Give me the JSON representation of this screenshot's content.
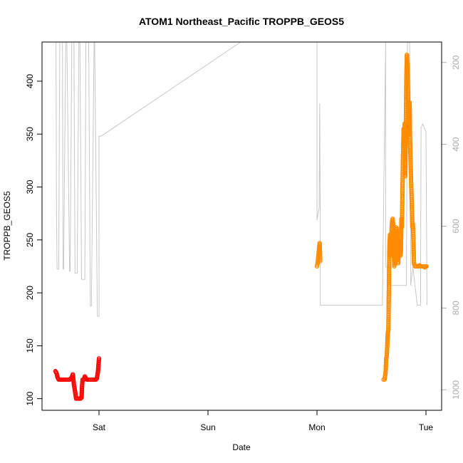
{
  "chart_data": {
    "type": "scatter",
    "title": "ATOM1 Northeast_Pacific TROPPB_GEOS5",
    "xlabel": "Date",
    "ylabel": "TROPPB_GEOS5",
    "x_ticks": [
      "Sat",
      "Sun",
      "Mon",
      "Tue"
    ],
    "xlim": [
      -0.455,
      3.13
    ],
    "ylim": [
      89,
      437
    ],
    "y_ticks": [
      100,
      150,
      200,
      250,
      300,
      350,
      400
    ],
    "right_axis": {
      "label_color": "#aaaaaa",
      "ticks": [
        200,
        400,
        600,
        800,
        1000
      ],
      "lim": [
        1050,
        150
      ],
      "reversed": true
    },
    "grid": false,
    "colors": {
      "flight1": "#ff0000",
      "flight2": "#ff8c00",
      "pressure": "#c8c8c8"
    },
    "series": [
      {
        "color": "#ff0000",
        "x": [
          -0.4,
          -0.39,
          -0.38,
          -0.37,
          -0.35,
          -0.33,
          -0.3,
          -0.27,
          -0.25,
          -0.24,
          -0.235,
          -0.23,
          -0.22,
          -0.21,
          -0.2,
          -0.19,
          -0.18,
          -0.17,
          -0.16,
          -0.155,
          -0.15,
          -0.14,
          -0.13,
          -0.12,
          -0.11,
          -0.1,
          -0.09,
          -0.08,
          -0.07,
          -0.06,
          -0.05,
          -0.04,
          -0.03,
          -0.02,
          -0.01,
          0.0
        ],
        "y": [
          126,
          124,
          120,
          118,
          118,
          118,
          118,
          118,
          120,
          123,
          118,
          113,
          107,
          100,
          100,
          100,
          100,
          100,
          101,
          113,
          118,
          118,
          121,
          119,
          118,
          118,
          118,
          118,
          118,
          118,
          118,
          118,
          118,
          119,
          125,
          138
        ]
      },
      {
        "color": "#ff8c00",
        "x": [
          0.0,
          0.005,
          0.01,
          0.015,
          0.02,
          0.025,
          0.03
        ],
        "y": [
          225,
          227,
          232,
          237,
          243,
          247,
          230
        ],
        "x_offset_days": 2.0
      },
      {
        "color": "#ff8c00",
        "x": [
          2.61,
          2.62,
          2.63,
          2.635,
          2.64,
          2.645,
          2.65,
          2.655,
          2.66,
          2.665,
          2.67,
          2.675,
          2.68,
          2.685,
          2.69,
          2.695,
          2.7,
          2.705,
          2.71,
          2.715,
          2.72,
          2.725,
          2.73,
          2.735,
          2.74,
          2.745,
          2.75,
          2.755,
          2.76,
          2.765,
          2.77,
          2.775,
          2.78,
          2.785,
          2.79,
          2.795,
          2.8,
          2.805,
          2.81,
          2.815,
          2.82,
          2.825,
          2.83,
          2.835,
          2.84,
          2.845,
          2.85,
          2.855,
          2.86,
          2.865,
          2.87,
          2.875,
          2.88,
          2.885,
          2.89,
          2.895,
          2.9,
          2.91,
          2.92,
          2.93,
          2.94,
          2.95,
          2.96,
          2.97,
          2.98,
          2.99,
          3.0,
          3.005
        ],
        "y": [
          118,
          118,
          125,
          138,
          140,
          150,
          162,
          165,
          205,
          245,
          255,
          235,
          248,
          260,
          268,
          270,
          262,
          240,
          225,
          230,
          255,
          262,
          260,
          250,
          236,
          228,
          240,
          260,
          258,
          235,
          240,
          270,
          262,
          300,
          330,
          355,
          340,
          360,
          310,
          345,
          400,
          425,
          415,
          390,
          360,
          350,
          380,
          340,
          320,
          300,
          285,
          262,
          265,
          250,
          228,
          226,
          225,
          225,
          225,
          225,
          226,
          225,
          225,
          225,
          225,
          224,
          225,
          225
        ]
      }
    ],
    "pressure_line": {
      "color": "#c8c8c8",
      "x": [
        -0.4,
        -0.395,
        -0.39,
        -0.385,
        -0.37,
        -0.36,
        -0.335,
        -0.33,
        -0.325,
        -0.305,
        -0.295,
        -0.27,
        -0.265,
        -0.25,
        -0.23,
        -0.22,
        -0.2,
        -0.185,
        -0.175,
        -0.16,
        -0.13,
        -0.12,
        -0.095,
        -0.08,
        -0.07,
        -0.045,
        -0.04,
        -0.015,
        -0.01,
        0.0,
        0.0,
        0.02,
        1.3,
        2.0,
        2.0,
        2.02,
        2.025,
        2.03,
        2.03,
        2.3,
        2.6,
        2.63,
        2.63,
        2.65,
        2.66,
        2.67,
        2.8,
        2.82,
        2.83,
        2.85,
        2.86,
        2.86,
        2.88,
        2.92,
        2.95,
        2.955,
        2.97,
        3.0,
        3.01
      ],
      "y": [
        150,
        150,
        555,
        705,
        705,
        150,
        150,
        705,
        705,
        150,
        150,
        710,
        710,
        150,
        150,
        715,
        715,
        150,
        150,
        730,
        730,
        150,
        150,
        795,
        795,
        150,
        150,
        820,
        820,
        820,
        380,
        380,
        150,
        150,
        585,
        555,
        300,
        555,
        793,
        793,
        793,
        150,
        700,
        700,
        700,
        745,
        745,
        745,
        150,
        150,
        350,
        745,
        700,
        793,
        793,
        360,
        350,
        370,
        793
      ]
    }
  }
}
